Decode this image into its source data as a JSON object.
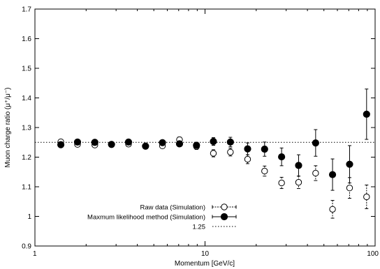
{
  "chart_data": {
    "type": "scatter",
    "xscale": "log",
    "xlabel": "Momentum [GeV/c]",
    "ylabel": "Muon charge ratio (μ⁺/μ⁻)",
    "xlim": [
      1,
      100
    ],
    "ylim": [
      0.9,
      1.7
    ],
    "xticks": [
      {
        "value": 1,
        "label": "1"
      },
      {
        "value": 10,
        "label": "10"
      },
      {
        "value": 100,
        "label": "100"
      }
    ],
    "yticks": [
      "0.9",
      "1",
      "1.1",
      "1.2",
      "1.3",
      "1.4",
      "1.5",
      "1.6",
      "1.7"
    ],
    "legend_position": "bottom-center",
    "series": [
      {
        "name": "Raw data (Simulation)",
        "marker": "open-circle",
        "color": "#000000",
        "points": [
          {
            "x": 1.42,
            "y": 1.252,
            "err": 0.006
          },
          {
            "x": 1.78,
            "y": 1.243,
            "err": 0.006
          },
          {
            "x": 2.25,
            "y": 1.241,
            "err": 0.006
          },
          {
            "x": 2.82,
            "y": 1.243,
            "err": 0.006
          },
          {
            "x": 3.55,
            "y": 1.244,
            "err": 0.007
          },
          {
            "x": 4.47,
            "y": 1.238,
            "err": 0.007
          },
          {
            "x": 5.62,
            "y": 1.238,
            "err": 0.008
          },
          {
            "x": 7.08,
            "y": 1.259,
            "err": 0.009
          },
          {
            "x": 8.91,
            "y": 1.236,
            "err": 0.01
          },
          {
            "x": 11.2,
            "y": 1.213,
            "err": 0.012
          },
          {
            "x": 14.1,
            "y": 1.217,
            "err": 0.013
          },
          {
            "x": 17.8,
            "y": 1.193,
            "err": 0.015
          },
          {
            "x": 22.4,
            "y": 1.153,
            "err": 0.017
          },
          {
            "x": 28.2,
            "y": 1.113,
            "err": 0.019
          },
          {
            "x": 35.5,
            "y": 1.115,
            "err": 0.021
          },
          {
            "x": 44.7,
            "y": 1.146,
            "err": 0.025
          },
          {
            "x": 56.2,
            "y": 1.024,
            "err": 0.03
          },
          {
            "x": 70.8,
            "y": 1.096,
            "err": 0.035
          },
          {
            "x": 89.1,
            "y": 1.066,
            "err": 0.04
          }
        ]
      },
      {
        "name": "Maxmum likelihood method (Simulation)",
        "marker": "filled-circle",
        "color": "#000000",
        "points": [
          {
            "x": 1.42,
            "y": 1.242,
            "err": 0.005
          },
          {
            "x": 1.78,
            "y": 1.251,
            "err": 0.005
          },
          {
            "x": 2.25,
            "y": 1.25,
            "err": 0.006
          },
          {
            "x": 2.82,
            "y": 1.243,
            "err": 0.006
          },
          {
            "x": 3.55,
            "y": 1.251,
            "err": 0.006
          },
          {
            "x": 4.47,
            "y": 1.237,
            "err": 0.007
          },
          {
            "x": 5.62,
            "y": 1.249,
            "err": 0.008
          },
          {
            "x": 7.08,
            "y": 1.245,
            "err": 0.009
          },
          {
            "x": 8.91,
            "y": 1.24,
            "err": 0.01
          },
          {
            "x": 11.2,
            "y": 1.253,
            "err": 0.013
          },
          {
            "x": 14.1,
            "y": 1.251,
            "err": 0.016
          },
          {
            "x": 17.8,
            "y": 1.228,
            "err": 0.02
          },
          {
            "x": 22.4,
            "y": 1.227,
            "err": 0.024
          },
          {
            "x": 28.2,
            "y": 1.201,
            "err": 0.03
          },
          {
            "x": 35.5,
            "y": 1.172,
            "err": 0.036
          },
          {
            "x": 44.7,
            "y": 1.248,
            "err": 0.045
          },
          {
            "x": 56.2,
            "y": 1.141,
            "err": 0.053
          },
          {
            "x": 70.8,
            "y": 1.176,
            "err": 0.063
          },
          {
            "x": 89.1,
            "y": 1.345,
            "err": 0.085
          }
        ]
      },
      {
        "name": "1.25",
        "marker": "dotted-line",
        "color": "#000000",
        "y": 1.25
      }
    ]
  }
}
